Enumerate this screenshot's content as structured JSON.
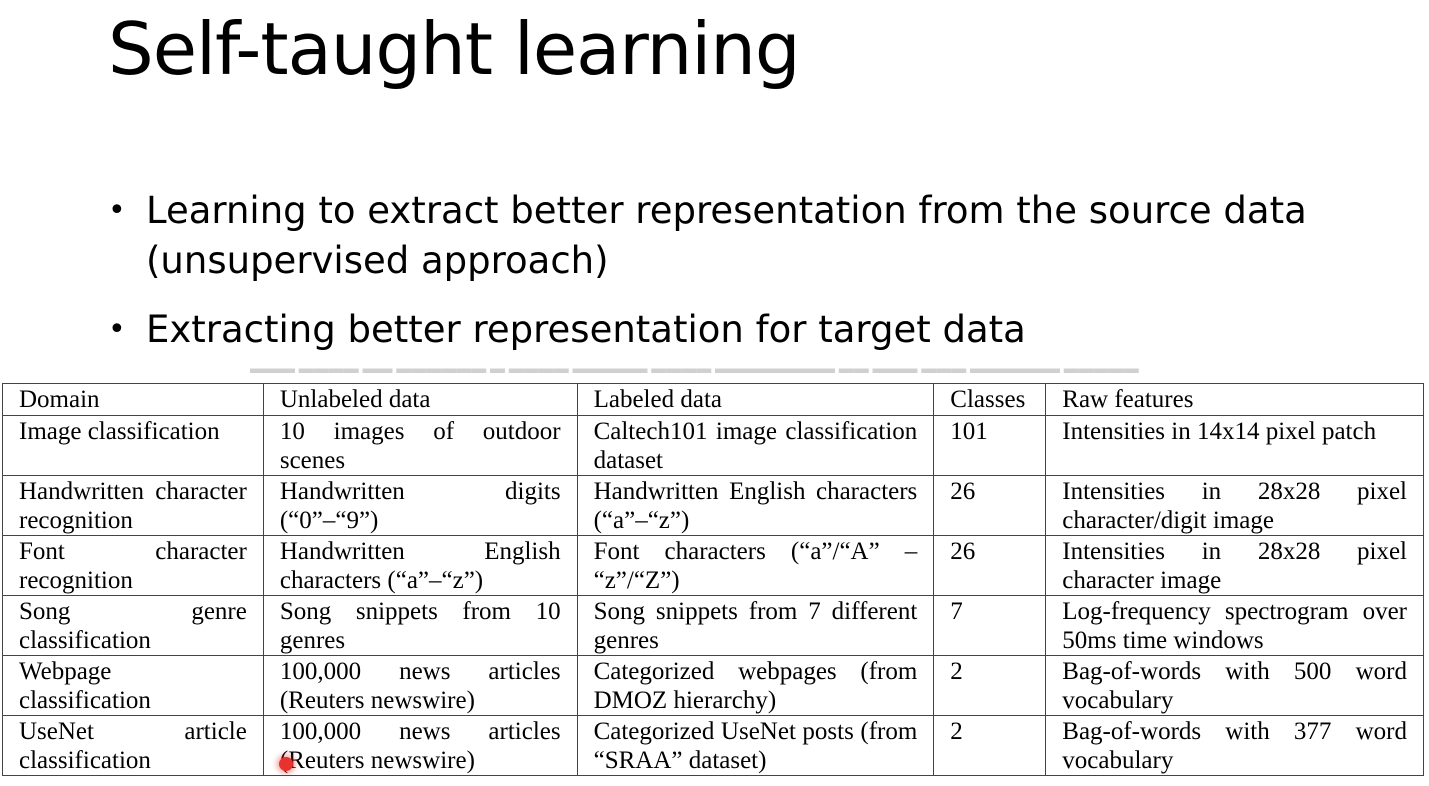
{
  "slide": {
    "title": "Self-taught learning",
    "bullets": [
      "Learning to extract better representation from the source data (unsupervised approach)",
      "Extracting better representation for target data"
    ]
  },
  "table": {
    "headers": [
      "Domain",
      "Unlabeled data",
      "Labeled data",
      "Classes",
      "Raw features"
    ],
    "rows": [
      [
        "Image classification",
        "10 images of outdoor scenes",
        "Caltech101 image classification dataset",
        "101",
        "Intensities in 14x14 pixel patch"
      ],
      [
        "Handwritten character recognition",
        "Handwritten digits (“0”–“9”)",
        "Handwritten English characters (“a”–“z”)",
        "26",
        "Intensities in 28x28 pixel character/digit image"
      ],
      [
        "Font character recognition",
        "Handwritten English characters (“a”–“z”)",
        "Font characters (“a”/“A” – “z”/“Z”)",
        "26",
        "Intensities in 28x28 pixel character image"
      ],
      [
        "Song genre classification",
        "Song snippets from 10 genres",
        "Song snippets from 7 different genres",
        "7",
        "Log-frequency spectrogram over 50ms time windows"
      ],
      [
        "Webpage classification",
        "100,000 news articles (Reuters newswire)",
        "Categorized webpages (from DMOZ hierarchy)",
        "2",
        "Bag-of-words with 500 word vocabulary"
      ],
      [
        "UseNet article classification",
        "100,000 news articles (Reuters newswire)",
        "Categorized UseNet posts (from “SRAA” dataset)",
        "2",
        "Bag-of-words with 377 word vocabulary"
      ]
    ]
  },
  "colors": {
    "cursor": "#e8322e",
    "table_border": "#444444"
  }
}
